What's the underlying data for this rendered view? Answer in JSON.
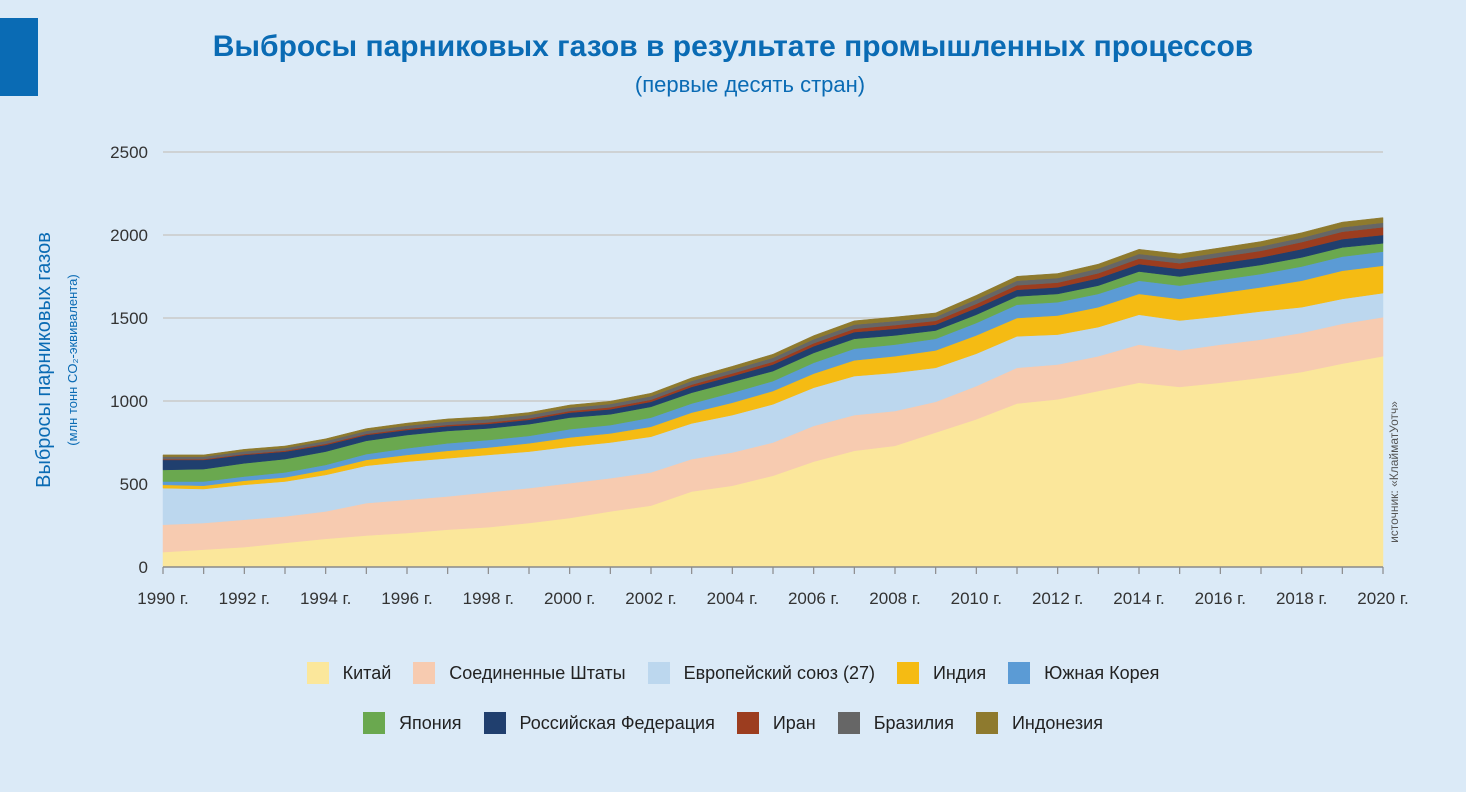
{
  "header": {
    "title": "Выбросы парниковых газов в результате промышленных процессов",
    "subtitle": "(первые десять стран)"
  },
  "source": "источник: «КлайматУотч»",
  "chart_data": {
    "type": "area",
    "stacked": true,
    "ylabel": "Выбросы парниковых газов",
    "ylabel_sub": "(млн тонн CO₂-эквивалента)",
    "ylim": [
      0,
      2500
    ],
    "yticks": [
      0,
      500,
      1000,
      1500,
      2000,
      2500
    ],
    "grid": true,
    "legend_position": "bottom",
    "x": [
      1990,
      1991,
      1992,
      1993,
      1994,
      1995,
      1996,
      1997,
      1998,
      1999,
      2000,
      2001,
      2002,
      2003,
      2004,
      2005,
      2006,
      2007,
      2008,
      2009,
      2010,
      2011,
      2012,
      2013,
      2014,
      2015,
      2016,
      2017,
      2018,
      2019,
      2020
    ],
    "xtick_labels": [
      "1990 г.",
      "1992 г.",
      "1994 г.",
      "1996 г.",
      "1998 г.",
      "2000 г.",
      "2002 г.",
      "2004 г.",
      "2006 г.",
      "2008 г.",
      "2010 г.",
      "2012 г.",
      "2014 г.",
      "2016 г.",
      "2018 г.",
      "2020 г."
    ],
    "series": [
      {
        "name": "Китай",
        "color": "#fbe79b",
        "values": [
          90,
          105,
          120,
          145,
          170,
          190,
          205,
          225,
          240,
          265,
          295,
          335,
          370,
          455,
          490,
          550,
          635,
          700,
          730,
          810,
          890,
          985,
          1010,
          1060,
          1110,
          1085,
          1110,
          1140,
          1175,
          1225,
          1270
        ]
      },
      {
        "name": "Соединенные Штаты",
        "color": "#f7cbb0",
        "values": [
          165,
          160,
          165,
          160,
          165,
          195,
          200,
          200,
          210,
          210,
          210,
          200,
          200,
          195,
          200,
          200,
          215,
          215,
          210,
          185,
          200,
          215,
          210,
          210,
          230,
          220,
          230,
          230,
          235,
          240,
          235
        ]
      },
      {
        "name": "Европейский союз (27)",
        "color": "#bcd7ee",
        "values": [
          220,
          205,
          210,
          210,
          220,
          225,
          230,
          230,
          225,
          220,
          220,
          215,
          215,
          215,
          225,
          230,
          230,
          235,
          230,
          205,
          195,
          190,
          180,
          175,
          180,
          180,
          170,
          170,
          155,
          150,
          145
        ]
      },
      {
        "name": "Индия",
        "color": "#f5bb13",
        "values": [
          20,
          20,
          25,
          25,
          30,
          35,
          40,
          45,
          45,
          50,
          55,
          55,
          60,
          65,
          75,
          80,
          85,
          95,
          100,
          105,
          110,
          110,
          115,
          120,
          125,
          130,
          140,
          145,
          160,
          170,
          165
        ]
      },
      {
        "name": "Южная Корея",
        "color": "#5b9bd5",
        "values": [
          20,
          25,
          25,
          30,
          30,
          35,
          40,
          45,
          45,
          45,
          50,
          50,
          55,
          55,
          60,
          60,
          65,
          70,
          70,
          70,
          75,
          80,
          80,
          80,
          80,
          80,
          80,
          80,
          85,
          85,
          85
        ]
      },
      {
        "name": "Япония",
        "color": "#6aa84f",
        "values": [
          70,
          75,
          80,
          80,
          80,
          80,
          80,
          75,
          70,
          70,
          70,
          65,
          65,
          65,
          65,
          60,
          60,
          60,
          55,
          50,
          50,
          50,
          50,
          50,
          55,
          55,
          55,
          55,
          55,
          55,
          50
        ]
      },
      {
        "name": "Российская Федерация",
        "color": "#203f6e",
        "values": [
          60,
          55,
          50,
          45,
          40,
          35,
          30,
          28,
          27,
          27,
          30,
          30,
          30,
          35,
          35,
          40,
          40,
          40,
          40,
          35,
          40,
          40,
          40,
          45,
          45,
          45,
          45,
          45,
          50,
          50,
          50
        ]
      },
      {
        "name": "Иран",
        "color": "#9c3d1f",
        "values": [
          5,
          5,
          6,
          6,
          7,
          7,
          8,
          8,
          9,
          9,
          10,
          12,
          13,
          14,
          16,
          17,
          18,
          20,
          22,
          23,
          25,
          27,
          28,
          30,
          33,
          35,
          38,
          40,
          42,
          45,
          47
        ]
      },
      {
        "name": "Бразилия",
        "color": "#666666",
        "values": [
          15,
          15,
          16,
          16,
          17,
          18,
          19,
          20,
          20,
          20,
          20,
          20,
          21,
          22,
          23,
          24,
          24,
          25,
          25,
          24,
          27,
          28,
          28,
          28,
          28,
          28,
          27,
          27,
          27,
          27,
          27
        ]
      },
      {
        "name": "Индонезия",
        "color": "#8e7a2e",
        "values": [
          10,
          10,
          12,
          12,
          13,
          14,
          15,
          16,
          15,
          15,
          16,
          17,
          18,
          19,
          20,
          21,
          22,
          23,
          24,
          24,
          25,
          26,
          27,
          27,
          28,
          28,
          28,
          29,
          30,
          31,
          31
        ]
      }
    ]
  }
}
